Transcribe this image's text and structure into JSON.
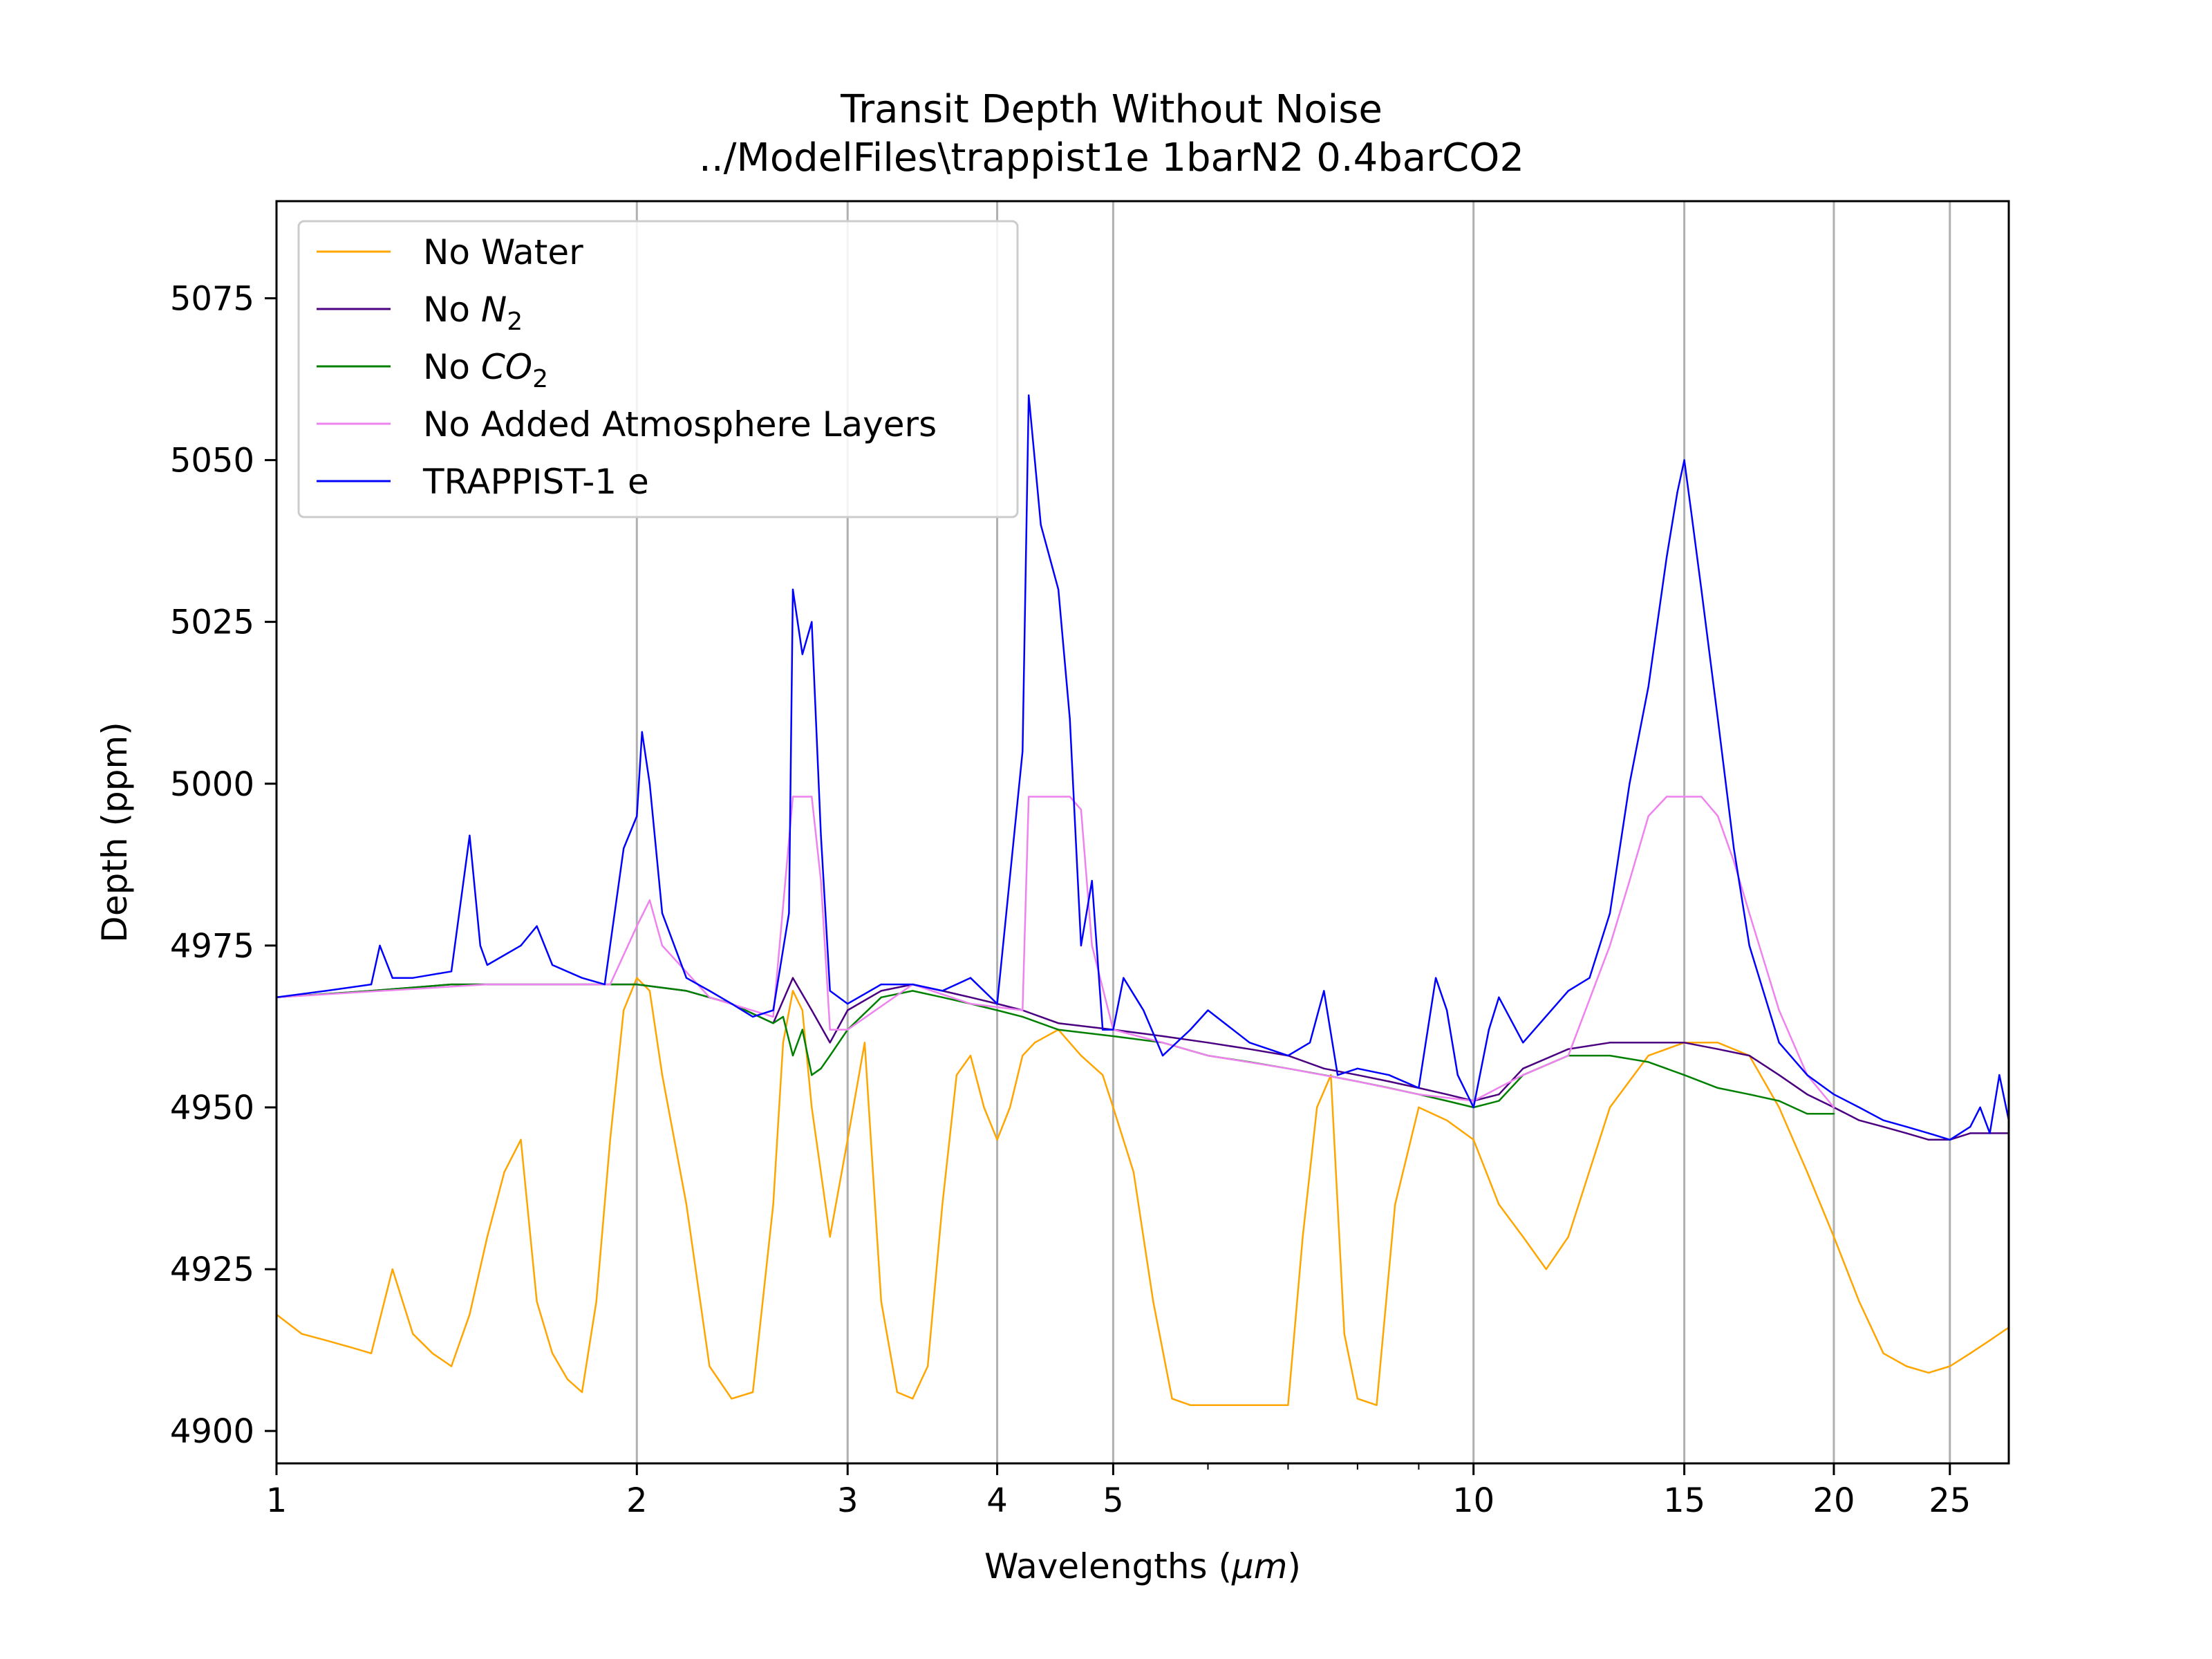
{
  "chart_data": {
    "type": "line",
    "title": "Transit Depth Without Noise",
    "subtitle": "../ModelFiles\\trappist1e 1barN2 0.4barCO2",
    "xlabel": "Wavelengths (μm)",
    "xlabel_parts": {
      "prefix": "Wavelengths (",
      "symbol": "μm",
      "suffix": ")"
    },
    "ylabel": "Depth (ppm)",
    "x_scale": "log",
    "xlim": [
      1.0,
      28.0
    ],
    "ylim": [
      4895,
      5090
    ],
    "x_ticks": [
      1,
      2,
      3,
      4,
      5,
      10,
      15,
      20,
      25
    ],
    "x_tick_labels": [
      "1",
      "2",
      "3",
      "4",
      "5",
      "10",
      "15",
      "20",
      "25"
    ],
    "x_minor_ticks": [
      6,
      7,
      8,
      9
    ],
    "x_grid": [
      2,
      3,
      4,
      5,
      10,
      15,
      20,
      25
    ],
    "y_ticks": [
      4900,
      4925,
      4950,
      4975,
      5000,
      5025,
      5050,
      5075
    ],
    "y_tick_labels": [
      "4900",
      "4925",
      "4950",
      "4975",
      "5000",
      "5025",
      "5050",
      "5075"
    ],
    "grid": "vertical major lines only",
    "legend_position": "upper-left",
    "legend": [
      {
        "label": "No Water",
        "base": "No Water",
        "sub": "",
        "color": "#ffa500"
      },
      {
        "label": "No N2",
        "base": "No ",
        "italic": "N",
        "sub": "2",
        "color": "#4b0082"
      },
      {
        "label": "No CO2",
        "base": "No ",
        "italic": "CO",
        "sub": "2",
        "color": "#008000"
      },
      {
        "label": "No Added Atmosphere Layers",
        "base": "No Added Atmosphere Layers",
        "sub": "",
        "color": "#ee82ee"
      },
      {
        "label": "TRAPPIST-1 e",
        "base": "TRAPPIST-1 e",
        "sub": "",
        "color": "#0000ff"
      }
    ],
    "series": [
      {
        "name": "No Water",
        "color": "#ffa500",
        "x": [
          1.0,
          1.05,
          1.1,
          1.15,
          1.2,
          1.25,
          1.3,
          1.35,
          1.4,
          1.45,
          1.5,
          1.55,
          1.6,
          1.65,
          1.7,
          1.75,
          1.8,
          1.85,
          1.9,
          1.95,
          2.0,
          2.05,
          2.1,
          2.2,
          2.3,
          2.4,
          2.5,
          2.6,
          2.65,
          2.7,
          2.75,
          2.8,
          2.9,
          3.0,
          3.1,
          3.2,
          3.3,
          3.4,
          3.5,
          3.6,
          3.7,
          3.8,
          3.9,
          4.0,
          4.1,
          4.2,
          4.3,
          4.5,
          4.7,
          4.9,
          5.0,
          5.2,
          5.4,
          5.6,
          5.8,
          6.0,
          6.2,
          6.4,
          6.6,
          6.8,
          7.0,
          7.2,
          7.4,
          7.6,
          7.8,
          8.0,
          8.3,
          8.6,
          9.0,
          9.5,
          10.0,
          10.5,
          11.0,
          11.5,
          12.0,
          13.0,
          14.0,
          15.0,
          16.0,
          17.0,
          18.0,
          19.0,
          20.0,
          21.0,
          22.0,
          23.0,
          24.0,
          25.0,
          26.0,
          27.0,
          28.0
        ],
        "values": [
          4918,
          4915,
          4914,
          4913,
          4912,
          4925,
          4915,
          4912,
          4910,
          4918,
          4930,
          4940,
          4945,
          4920,
          4912,
          4908,
          4906,
          4920,
          4945,
          4965,
          4970,
          4968,
          4955,
          4935,
          4910,
          4905,
          4906,
          4935,
          4960,
          4968,
          4965,
          4950,
          4930,
          4945,
          4960,
          4920,
          4906,
          4905,
          4910,
          4935,
          4955,
          4958,
          4950,
          4945,
          4950,
          4958,
          4960,
          4962,
          4958,
          4955,
          4950,
          4940,
          4920,
          4905,
          4904,
          4904,
          4904,
          4904,
          4904,
          4904,
          4904,
          4930,
          4950,
          4955,
          4915,
          4905,
          4904,
          4935,
          4950,
          4948,
          4945,
          4935,
          4930,
          4925,
          4930,
          4950,
          4958,
          4960,
          4960,
          4958,
          4950,
          4940,
          4930,
          4920,
          4912,
          4910,
          4909,
          4910,
          4912,
          4914,
          4916
        ]
      },
      {
        "name": "No N2",
        "color": "#4b0082",
        "x": [
          1.0,
          1.2,
          1.4,
          1.6,
          1.8,
          2.0,
          2.2,
          2.4,
          2.6,
          2.7,
          2.8,
          2.9,
          3.0,
          3.2,
          3.4,
          3.6,
          3.8,
          4.0,
          4.2,
          4.5,
          5.0,
          5.5,
          6.0,
          6.5,
          7.0,
          7.5,
          8.0,
          8.5,
          9.0,
          9.5,
          10.0,
          10.5,
          11.0,
          12.0,
          13.0,
          14.0,
          15.0,
          16.0,
          17.0,
          18.0,
          19.0,
          20.0,
          21.0,
          22.0,
          23.0,
          24.0,
          25.0,
          26.0,
          27.0,
          28.0
        ],
        "values": [
          4967,
          4968,
          4969,
          4969,
          4969,
          4969,
          4968,
          4966,
          4963,
          4970,
          4965,
          4960,
          4965,
          4968,
          4969,
          4968,
          4967,
          4966,
          4965,
          4963,
          4962,
          4961,
          4960,
          4959,
          4958,
          4956,
          4955,
          4954,
          4953,
          4952,
          4951,
          4952,
          4956,
          4959,
          4960,
          4960,
          4960,
          4959,
          4958,
          4955,
          4952,
          4950,
          4948,
          4947,
          4946,
          4945,
          4945,
          4946,
          4946,
          4946
        ]
      },
      {
        "name": "No CO2",
        "color": "#008000",
        "x": [
          1.0,
          1.2,
          1.4,
          1.6,
          1.8,
          2.0,
          2.2,
          2.4,
          2.6,
          2.65,
          2.7,
          2.75,
          2.8,
          2.85,
          2.9,
          3.0,
          3.2,
          3.4,
          3.6,
          3.8,
          4.0,
          4.2,
          4.5,
          5.0,
          5.5,
          6.0,
          6.5,
          7.0,
          7.5,
          8.0,
          8.5,
          9.0,
          9.5,
          10.0,
          10.5,
          11.0,
          12.0,
          13.0,
          14.0,
          15.0,
          16.0,
          17.0,
          18.0,
          19.0,
          20.0
        ],
        "values": [
          4967,
          4968,
          4969,
          4969,
          4969,
          4969,
          4968,
          4966,
          4963,
          4964,
          4958,
          4962,
          4955,
          4956,
          4958,
          4962,
          4967,
          4968,
          4967,
          4966,
          4965,
          4964,
          4962,
          4961,
          4960,
          4958,
          4957,
          4956,
          4955,
          4954,
          4953,
          4952,
          4951,
          4950,
          4951,
          4955,
          4958,
          4958,
          4957,
          4955,
          4953,
          4952,
          4951,
          4949,
          4949
        ]
      },
      {
        "name": "No Added Atmosphere Layers",
        "color": "#ee82ee",
        "x": [
          1.0,
          1.5,
          1.9,
          2.0,
          2.05,
          2.1,
          2.3,
          2.6,
          2.7,
          2.75,
          2.8,
          2.85,
          2.9,
          3.0,
          3.4,
          3.8,
          4.2,
          4.25,
          4.5,
          4.6,
          4.7,
          4.8,
          5.0,
          5.5,
          6.0,
          7.0,
          8.0,
          9.0,
          10.0,
          11.0,
          12.0,
          13.0,
          13.5,
          14.0,
          14.5,
          15.0,
          15.5,
          16.0,
          16.5,
          17.0,
          18.0,
          19.0,
          20.0
        ],
        "values": [
          4967,
          4969,
          4969,
          4978,
          4982,
          4975,
          4967,
          4964,
          4998,
          4998,
          4998,
          4985,
          4962,
          4962,
          4969,
          4966,
          4965,
          4998,
          4998,
          4998,
          4996,
          4975,
          4962,
          4960,
          4958,
          4956,
          4954,
          4952,
          4951,
          4955,
          4958,
          4975,
          4985,
          4995,
          4998,
          4998,
          4998,
          4995,
          4988,
          4980,
          4965,
          4955,
          4950
        ]
      },
      {
        "name": "TRAPPIST-1 e",
        "color": "#0000ff",
        "x": [
          1.0,
          1.1,
          1.2,
          1.22,
          1.25,
          1.3,
          1.4,
          1.45,
          1.48,
          1.5,
          1.6,
          1.65,
          1.7,
          1.8,
          1.88,
          1.95,
          2.0,
          2.02,
          2.05,
          2.1,
          2.2,
          2.3,
          2.4,
          2.5,
          2.6,
          2.68,
          2.7,
          2.75,
          2.8,
          2.85,
          2.9,
          3.0,
          3.2,
          3.4,
          3.6,
          3.8,
          4.0,
          4.2,
          4.25,
          4.3,
          4.35,
          4.5,
          4.6,
          4.7,
          4.8,
          4.9,
          5.0,
          5.1,
          5.3,
          5.5,
          5.8,
          6.0,
          6.5,
          7.0,
          7.3,
          7.5,
          7.7,
          8.0,
          8.5,
          9.0,
          9.3,
          9.5,
          9.7,
          10.0,
          10.3,
          10.5,
          11.0,
          12.0,
          12.5,
          13.0,
          13.5,
          14.0,
          14.5,
          14.8,
          15.0,
          15.2,
          15.5,
          16.0,
          16.5,
          17.0,
          18.0,
          19.0,
          20.0,
          21.0,
          22.0,
          23.0,
          24.0,
          25.0,
          25.5,
          26.0,
          26.5,
          27.0,
          27.5,
          28.0
        ],
        "values": [
          4967,
          4968,
          4969,
          4975,
          4970,
          4970,
          4971,
          4992,
          4975,
          4972,
          4975,
          4978,
          4972,
          4970,
          4969,
          4990,
          4995,
          5008,
          5000,
          4980,
          4970,
          4968,
          4966,
          4964,
          4965,
          4980,
          5030,
          5020,
          5025,
          4992,
          4968,
          4966,
          4969,
          4969,
          4968,
          4970,
          4966,
          5005,
          5060,
          5050,
          5040,
          5030,
          5010,
          4975,
          4985,
          4962,
          4962,
          4970,
          4965,
          4958,
          4962,
          4965,
          4960,
          4958,
          4960,
          4968,
          4955,
          4956,
          4955,
          4953,
          4970,
          4965,
          4955,
          4950,
          4962,
          4967,
          4960,
          4968,
          4970,
          4980,
          5000,
          5015,
          5035,
          5045,
          5050,
          5042,
          5030,
          5010,
          4990,
          4975,
          4960,
          4955,
          4952,
          4950,
          4948,
          4947,
          4946,
          4945,
          4946,
          4947,
          4950,
          4946,
          4955,
          4948
        ]
      }
    ]
  }
}
